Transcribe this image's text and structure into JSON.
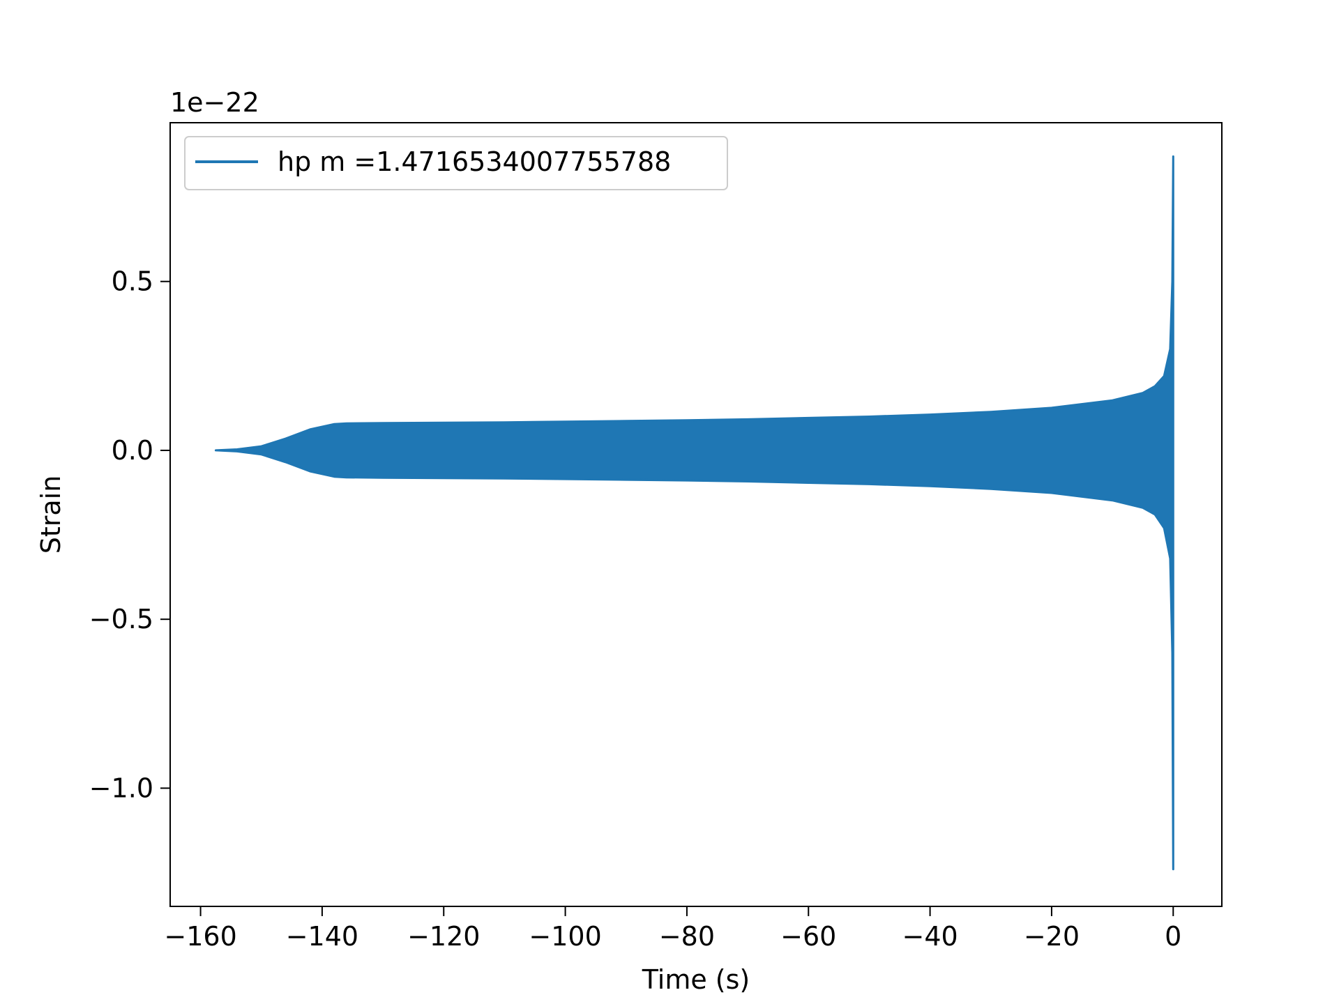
{
  "chart_data": {
    "type": "line",
    "title": "",
    "xlabel": "Time (s)",
    "ylabel": "Strain",
    "y_offset_label": "1e−22",
    "xlim": [
      -165,
      8
    ],
    "ylim": [
      -1.35,
      0.97
    ],
    "x_ticks": [
      -160,
      -140,
      -120,
      -100,
      -80,
      -60,
      -40,
      -20,
      0
    ],
    "x_tick_labels": [
      "−160",
      "−140",
      "−120",
      "−100",
      "−80",
      "−60",
      "−40",
      "−20",
      "0"
    ],
    "y_ticks": [
      -1.0,
      -0.5,
      0.0,
      0.5
    ],
    "y_tick_labels": [
      "−1.0",
      "−0.5",
      "0.0",
      "0.5"
    ],
    "grid": false,
    "legend": {
      "position": "upper-left",
      "entries": [
        "hp m =1.4716534007755788"
      ]
    },
    "series": [
      {
        "name": "hp m =1.4716534007755788",
        "color": "#1f77b4",
        "envelope": {
          "t": [
            -157.5,
            -154,
            -150,
            -146,
            -142,
            -138,
            -136,
            -130,
            -120,
            -110,
            -100,
            -90,
            -80,
            -70,
            -60,
            -50,
            -40,
            -30,
            -20,
            -10,
            -5,
            -3,
            -1.5,
            -0.5,
            -0.15,
            0.0
          ],
          "upper": [
            0.0,
            0.003,
            0.012,
            0.035,
            0.062,
            0.078,
            0.08,
            0.081,
            0.082,
            0.083,
            0.085,
            0.087,
            0.089,
            0.092,
            0.096,
            0.1,
            0.106,
            0.114,
            0.126,
            0.148,
            0.17,
            0.19,
            0.22,
            0.3,
            0.5,
            0.87
          ],
          "lower": [
            0.0,
            -0.003,
            -0.012,
            -0.035,
            -0.062,
            -0.078,
            -0.08,
            -0.081,
            -0.082,
            -0.083,
            -0.085,
            -0.087,
            -0.089,
            -0.092,
            -0.096,
            -0.1,
            -0.106,
            -0.114,
            -0.126,
            -0.148,
            -0.17,
            -0.19,
            -0.23,
            -0.32,
            -0.6,
            -1.24
          ]
        }
      }
    ]
  }
}
